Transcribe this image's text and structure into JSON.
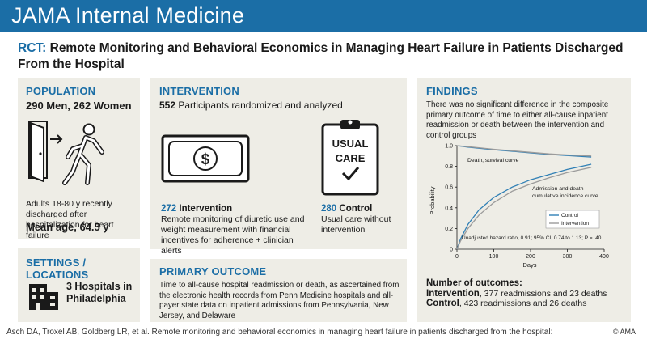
{
  "header": {
    "title": "JAMA Internal Medicine"
  },
  "title": {
    "prefix": "RCT:",
    "text": " Remote Monitoring and Behavioral Economics in Managing Heart Failure in Patients Discharged From the Hospital"
  },
  "population": {
    "heading": "POPULATION",
    "counts": "290 Men, 262 Women",
    "description": "Adults 18-80 y recently discharged after hospitalization for heart failure",
    "mean_age": "Mean age, 64.5 y"
  },
  "settings": {
    "heading": "SETTINGS / LOCATIONS",
    "hospitals": "3 Hospitals in Philadelphia"
  },
  "intervention": {
    "heading": "INTERVENTION",
    "participants_count": "552",
    "participants_text": " Participants randomized and analyzed",
    "usual_care_label_1": "USUAL",
    "usual_care_label_2": "CARE",
    "dollar_symbol": "$",
    "arm_intervention_count": "272",
    "arm_intervention_name": " Intervention",
    "arm_intervention_desc": "Remote monitoring of diuretic use and weight measurement with financial incentives for adherence + clinician alerts",
    "arm_control_count": "280",
    "arm_control_name": " Control",
    "arm_control_desc": "Usual care without intervention"
  },
  "primary_outcome": {
    "heading": "PRIMARY OUTCOME",
    "text": "Time to all-cause hospital readmission or death, as ascertained from the electronic health records from Penn Medicine hospitals and all-payer state data on inpatient admissions from Pennsylvania, New Jersey, and Delaware"
  },
  "findings": {
    "heading": "FINDINGS",
    "summary": "There was no significant difference in the composite primary outcome of time to either all-cause inpatient readmission or death between the intervention and control groups",
    "outcomes_heading": "Number of outcomes:",
    "intervention_label": "Intervention",
    "intervention_text": ", 377 readmissions and 23 deaths",
    "control_label": "Control",
    "control_text": ", 423 readmissions and 26 deaths"
  },
  "chart_data": {
    "type": "line",
    "xlabel": "Days",
    "ylabel": "Probability",
    "xlim": [
      0,
      400
    ],
    "ylim": [
      0,
      1.0
    ],
    "x_ticks": [
      "0",
      "100",
      "200",
      "300",
      "400"
    ],
    "y_ticks": [
      "0",
      "0.2",
      "0.4",
      "0.6",
      "0.8",
      "1.0"
    ],
    "annotations": {
      "death_curve": "Death, survival curve",
      "incidence_curve_1": "Admission and death",
      "incidence_curve_2": "cumulative incidence curve",
      "hazard_ratio": "Unadjusted hazard ratio, 0.91; 95% CI, 0.74 to 1.13; P = .40"
    },
    "legend_position": "bottom-right",
    "series": [
      {
        "name": "Control",
        "color": "#2f7fb5",
        "survival": {
          "x": [
            0,
            30,
            60,
            100,
            150,
            200,
            250,
            300,
            365
          ],
          "y": [
            1.0,
            0.985,
            0.975,
            0.96,
            0.945,
            0.93,
            0.915,
            0.905,
            0.89
          ]
        },
        "incidence": {
          "x": [
            0,
            10,
            30,
            60,
            100,
            150,
            200,
            250,
            300,
            365
          ],
          "y": [
            0,
            0.1,
            0.24,
            0.38,
            0.5,
            0.6,
            0.67,
            0.72,
            0.77,
            0.82
          ]
        }
      },
      {
        "name": "Intervention",
        "color": "#9b9b9b",
        "survival": {
          "x": [
            0,
            30,
            60,
            100,
            150,
            200,
            250,
            300,
            365
          ],
          "y": [
            1.0,
            0.99,
            0.98,
            0.965,
            0.95,
            0.935,
            0.92,
            0.91,
            0.9
          ]
        },
        "incidence": {
          "x": [
            0,
            10,
            30,
            60,
            100,
            150,
            200,
            250,
            300,
            365
          ],
          "y": [
            0,
            0.08,
            0.2,
            0.33,
            0.45,
            0.56,
            0.63,
            0.69,
            0.74,
            0.79
          ]
        }
      }
    ]
  },
  "footer": {
    "citation": "Asch DA, Troxel AB, Goldberg LR, et al. Remote monitoring and behavioral economics in managing heart failure in patients discharged from the hospital:",
    "copyright": "© AMA"
  }
}
